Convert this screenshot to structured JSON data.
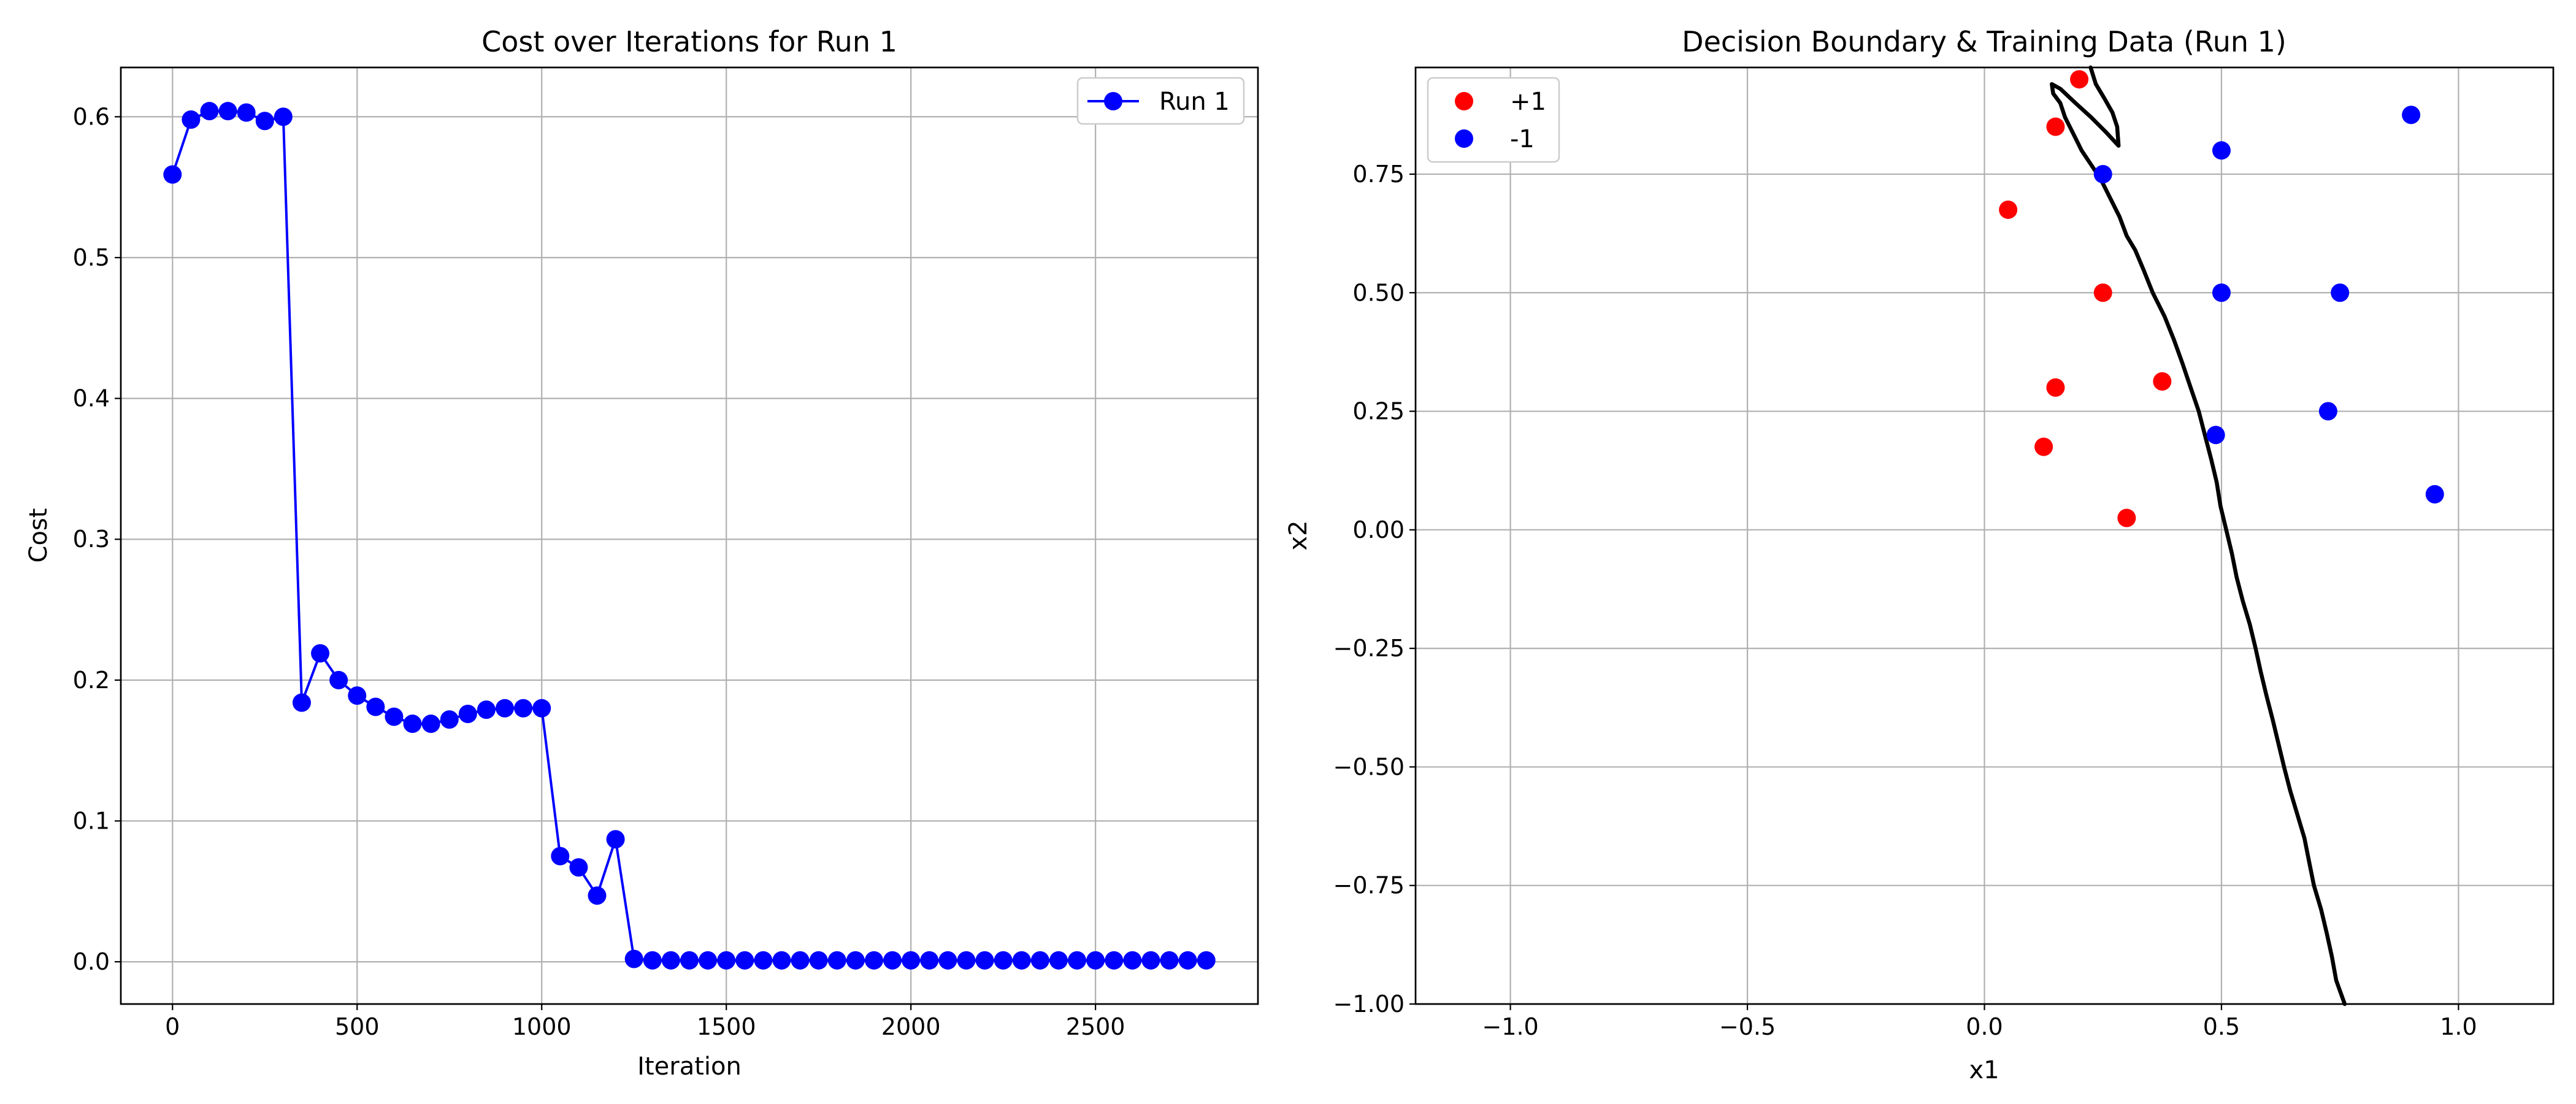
{
  "chart_data": [
    {
      "type": "line",
      "title": "Cost over Iterations for Run 1",
      "xlabel": "Iteration",
      "ylabel": "Cost",
      "xlim": [
        -140,
        2940
      ],
      "ylim": [
        -0.03,
        0.635
      ],
      "xticks": [
        0,
        500,
        1000,
        1500,
        2000,
        2500
      ],
      "yticks": [
        0.0,
        0.1,
        0.2,
        0.3,
        0.4,
        0.5,
        0.6
      ],
      "grid": true,
      "legend_position": "top-right",
      "color": "#0000ff",
      "series": [
        {
          "name": "Run 1",
          "x": [
            0,
            50,
            100,
            150,
            200,
            250,
            300,
            350,
            400,
            450,
            500,
            550,
            600,
            650,
            700,
            750,
            800,
            850,
            900,
            950,
            1000,
            1050,
            1100,
            1150,
            1200,
            1250,
            1300,
            1350,
            1400,
            1450,
            1500,
            1550,
            1600,
            1650,
            1700,
            1750,
            1800,
            1850,
            1900,
            1950,
            2000,
            2050,
            2100,
            2150,
            2200,
            2250,
            2300,
            2350,
            2400,
            2450,
            2500,
            2550,
            2600,
            2650,
            2700,
            2750,
            2800
          ],
          "y": [
            0.559,
            0.598,
            0.604,
            0.604,
            0.603,
            0.597,
            0.6,
            0.184,
            0.219,
            0.2,
            0.189,
            0.181,
            0.174,
            0.169,
            0.169,
            0.172,
            0.176,
            0.179,
            0.18,
            0.18,
            0.18,
            0.075,
            0.067,
            0.047,
            0.087,
            0.002,
            0.001,
            0.001,
            0.001,
            0.001,
            0.001,
            0.001,
            0.001,
            0.001,
            0.001,
            0.001,
            0.001,
            0.001,
            0.001,
            0.001,
            0.001,
            0.001,
            0.001,
            0.001,
            0.001,
            0.001,
            0.001,
            0.001,
            0.001,
            0.001,
            0.001,
            0.001,
            0.001,
            0.001,
            0.001,
            0.001,
            0.001
          ]
        }
      ]
    },
    {
      "type": "scatter",
      "title": "Decision Boundary & Training Data (Run 1)",
      "xlabel": "x1",
      "ylabel": "x2",
      "xlim": [
        -1.2,
        1.2
      ],
      "ylim": [
        -1.0,
        0.975
      ],
      "xticks": [
        -1.0,
        -0.5,
        0.0,
        0.5,
        1.0
      ],
      "xtick_labels": [
        "−1.0",
        "−0.5",
        "0.0",
        "0.5",
        "1.0"
      ],
      "yticks": [
        -1.0,
        -0.75,
        -0.5,
        -0.25,
        0.0,
        0.25,
        0.5,
        0.75
      ],
      "ytick_labels": [
        "−1.00",
        "−0.75",
        "−0.50",
        "−0.25",
        "0.00",
        "0.25",
        "0.50",
        "0.75"
      ],
      "grid": true,
      "legend_position": "top-left",
      "series": [
        {
          "name": "+1",
          "color": "#ff0000",
          "points": [
            [
              0.2,
              0.95
            ],
            [
              0.15,
              0.85
            ],
            [
              0.05,
              0.675
            ],
            [
              0.25,
              0.5
            ],
            [
              0.375,
              0.313
            ],
            [
              0.15,
              0.3
            ],
            [
              0.125,
              0.175
            ],
            [
              0.3,
              0.025
            ]
          ]
        },
        {
          "name": "-1",
          "color": "#0000ff",
          "points": [
            [
              0.9,
              0.875
            ],
            [
              0.5,
              0.8
            ],
            [
              0.25,
              0.75
            ],
            [
              0.5,
              0.5
            ],
            [
              0.75,
              0.5
            ],
            [
              0.725,
              0.25
            ],
            [
              0.488,
              0.2
            ],
            [
              0.95,
              0.075
            ]
          ]
        }
      ],
      "boundary": {
        "color": "#000000",
        "segments": [
          [
            [
              0.224,
              0.975
            ],
            [
              0.235,
              0.94
            ],
            [
              0.253,
              0.91
            ],
            [
              0.27,
              0.88
            ],
            [
              0.28,
              0.85
            ],
            [
              0.283,
              0.81
            ],
            [
              0.255,
              0.84
            ],
            [
              0.225,
              0.87
            ],
            [
              0.192,
              0.9
            ],
            [
              0.16,
              0.93
            ],
            [
              0.142,
              0.94
            ],
            [
              0.145,
              0.92
            ],
            [
              0.16,
              0.9
            ],
            [
              0.17,
              0.87
            ],
            [
              0.19,
              0.83
            ],
            [
              0.205,
              0.8
            ],
            [
              0.225,
              0.77
            ],
            [
              0.245,
              0.74
            ],
            [
              0.265,
              0.7
            ],
            [
              0.285,
              0.66
            ],
            [
              0.3,
              0.62
            ],
            [
              0.318,
              0.59
            ],
            [
              0.335,
              0.55
            ],
            [
              0.355,
              0.5
            ],
            [
              0.38,
              0.45
            ],
            [
              0.4,
              0.4
            ],
            [
              0.418,
              0.35
            ],
            [
              0.435,
              0.3
            ],
            [
              0.452,
              0.25
            ],
            [
              0.465,
              0.2
            ],
            [
              0.478,
              0.15
            ],
            [
              0.49,
              0.1
            ],
            [
              0.498,
              0.05
            ],
            [
              0.51,
              0.0
            ],
            [
              0.522,
              -0.05
            ],
            [
              0.532,
              -0.1
            ],
            [
              0.545,
              -0.15
            ],
            [
              0.56,
              -0.2
            ],
            [
              0.572,
              -0.25
            ],
            [
              0.583,
              -0.3
            ],
            [
              0.595,
              -0.35
            ],
            [
              0.608,
              -0.4
            ],
            [
              0.62,
              -0.45
            ],
            [
              0.632,
              -0.5
            ],
            [
              0.645,
              -0.55
            ],
            [
              0.66,
              -0.6
            ],
            [
              0.675,
              -0.65
            ],
            [
              0.685,
              -0.7
            ],
            [
              0.695,
              -0.75
            ],
            [
              0.71,
              -0.8
            ],
            [
              0.722,
              -0.85
            ],
            [
              0.733,
              -0.9
            ],
            [
              0.742,
              -0.95
            ],
            [
              0.76,
              -1.0
            ]
          ]
        ]
      }
    }
  ]
}
